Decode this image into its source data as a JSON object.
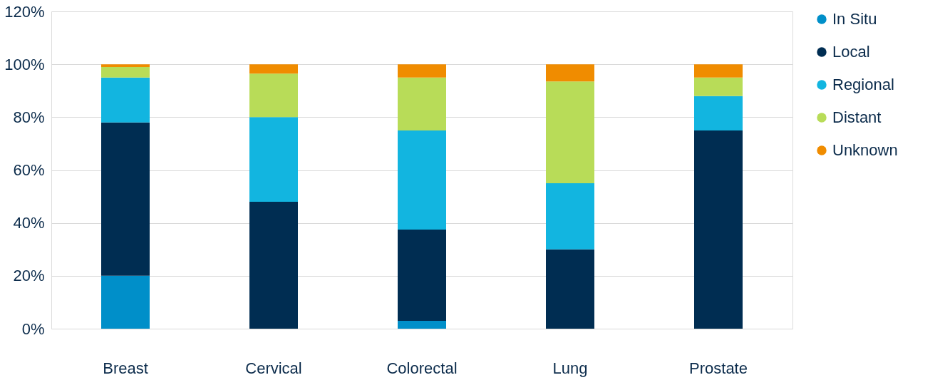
{
  "chart_data": {
    "type": "bar",
    "stacked": true,
    "categories": [
      "Breast",
      "Cervical",
      "Colorectal",
      "Lung",
      "Prostate"
    ],
    "series": [
      {
        "name": "In Situ",
        "color": "#008fc9",
        "values": [
          20,
          0,
          3,
          0,
          0
        ]
      },
      {
        "name": "Local",
        "color": "#002d52",
        "values": [
          58,
          48,
          34.5,
          30,
          75
        ]
      },
      {
        "name": "Regional",
        "color": "#12b5e0",
        "values": [
          17,
          32,
          37.5,
          25,
          13
        ]
      },
      {
        "name": "Distant",
        "color": "#b8dc58",
        "values": [
          4,
          16.5,
          20,
          38.5,
          7
        ]
      },
      {
        "name": "Unknown",
        "color": "#f08c00",
        "values": [
          1,
          3.5,
          5,
          6.5,
          5
        ]
      }
    ],
    "ylim": [
      0,
      120
    ],
    "yticks": [
      {
        "value": 0,
        "label": "0%"
      },
      {
        "value": 20,
        "label": "20%"
      },
      {
        "value": 40,
        "label": "40%"
      },
      {
        "value": 60,
        "label": "60%"
      },
      {
        "value": 80,
        "label": "80%"
      },
      {
        "value": 100,
        "label": "100%"
      },
      {
        "value": 120,
        "label": "120%"
      }
    ],
    "grid": "y",
    "legend": "top right"
  }
}
